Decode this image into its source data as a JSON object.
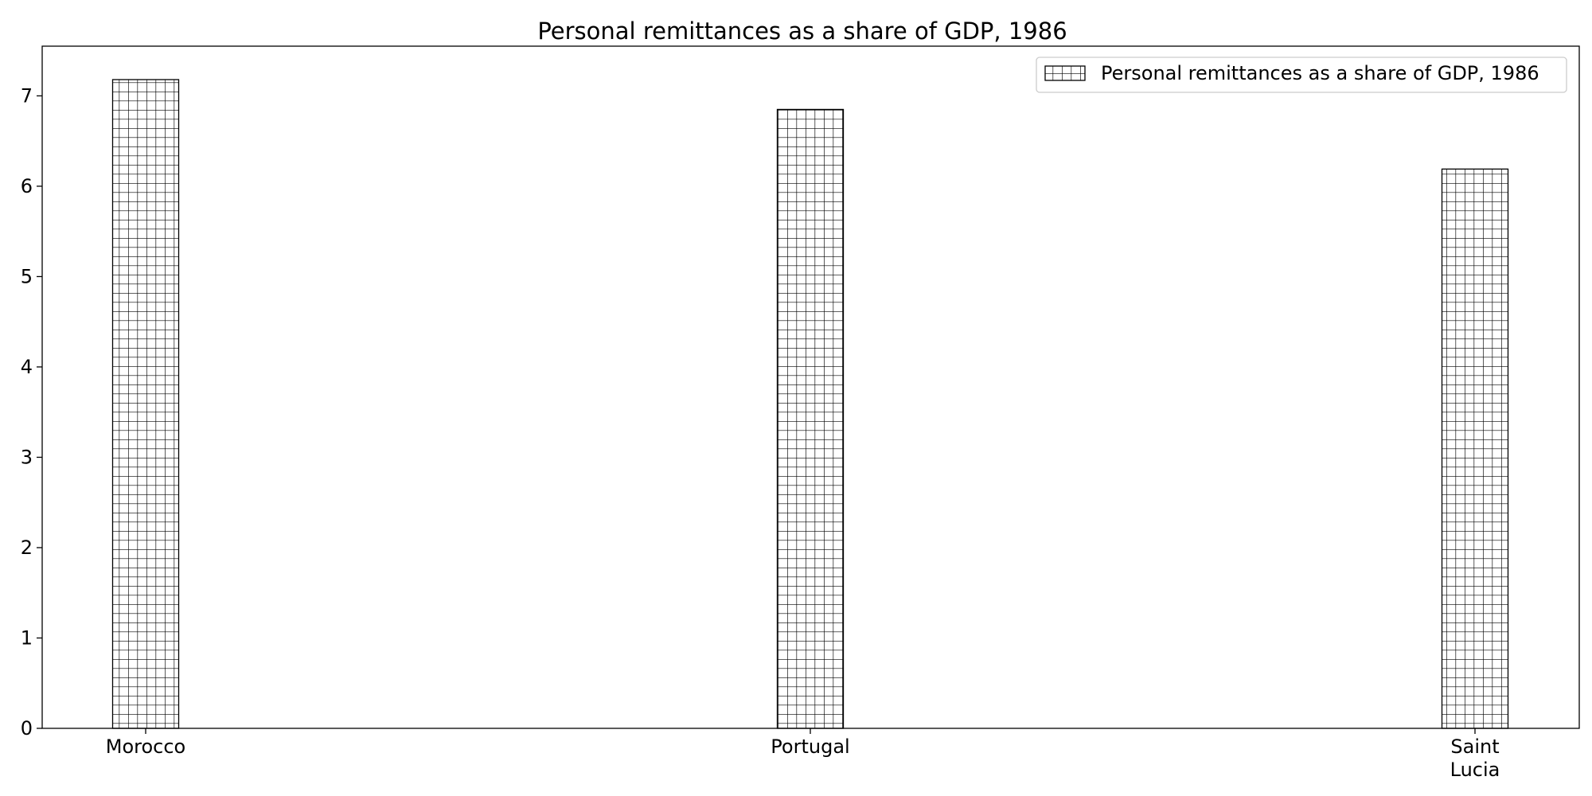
{
  "chart_data": {
    "type": "bar",
    "title": "Personal remittances as a share of GDP, 1986",
    "categories": [
      "Morocco",
      "Portugal",
      "Saint Lucia"
    ],
    "category_labels": [
      [
        "Morocco"
      ],
      [
        "Portugal"
      ],
      [
        "Saint",
        "Lucia"
      ]
    ],
    "series": [
      {
        "name": "Personal remittances as a share of GDP, 1986",
        "values": [
          7.18,
          6.85,
          6.19
        ]
      }
    ],
    "xlabel": "",
    "ylabel": "",
    "ylim": [
      0,
      7.55
    ],
    "yticks": [
      0,
      1,
      2,
      3,
      4,
      5,
      6,
      7
    ],
    "grid": false,
    "legend_position": "top-right",
    "bar_fill": "#ffffff",
    "bar_hatch": "grid",
    "bar_edge_color": "#000000"
  }
}
